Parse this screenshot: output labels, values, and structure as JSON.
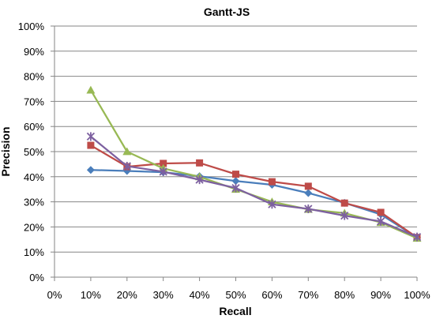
{
  "chart_data": {
    "type": "line",
    "title": "Gantt-JS",
    "xlabel": "Recall",
    "ylabel": "Precision",
    "x": [
      0.1,
      0.2,
      0.3,
      0.4,
      0.5,
      0.6,
      0.7,
      0.8,
      0.9,
      1.0
    ],
    "xlim": [
      0,
      1
    ],
    "ylim": [
      0,
      1
    ],
    "x_ticks": [
      "0%",
      "10%",
      "20%",
      "30%",
      "40%",
      "50%",
      "60%",
      "70%",
      "80%",
      "90%",
      "100%"
    ],
    "y_ticks": [
      "0%",
      "10%",
      "20%",
      "30%",
      "40%",
      "50%",
      "60%",
      "70%",
      "80%",
      "90%",
      "100%"
    ],
    "grid": "horizontal",
    "legend": "none",
    "series": [
      {
        "color": "#4A7EBB",
        "marker": "diamond",
        "values": [
          0.427,
          0.423,
          0.418,
          0.402,
          0.383,
          0.368,
          0.335,
          0.296,
          0.25,
          0.158
        ]
      },
      {
        "color": "#BE4B48",
        "marker": "square",
        "values": [
          0.525,
          0.44,
          0.453,
          0.455,
          0.41,
          0.38,
          0.362,
          0.295,
          0.258,
          0.158
        ]
      },
      {
        "color": "#98B954",
        "marker": "triangle",
        "values": [
          0.745,
          0.5,
          0.433,
          0.4,
          0.35,
          0.3,
          0.27,
          0.255,
          0.218,
          0.155
        ]
      },
      {
        "color": "#7D60A0",
        "marker": "star",
        "values": [
          0.56,
          0.442,
          0.42,
          0.388,
          0.355,
          0.29,
          0.272,
          0.245,
          0.222,
          0.16
        ]
      }
    ]
  }
}
